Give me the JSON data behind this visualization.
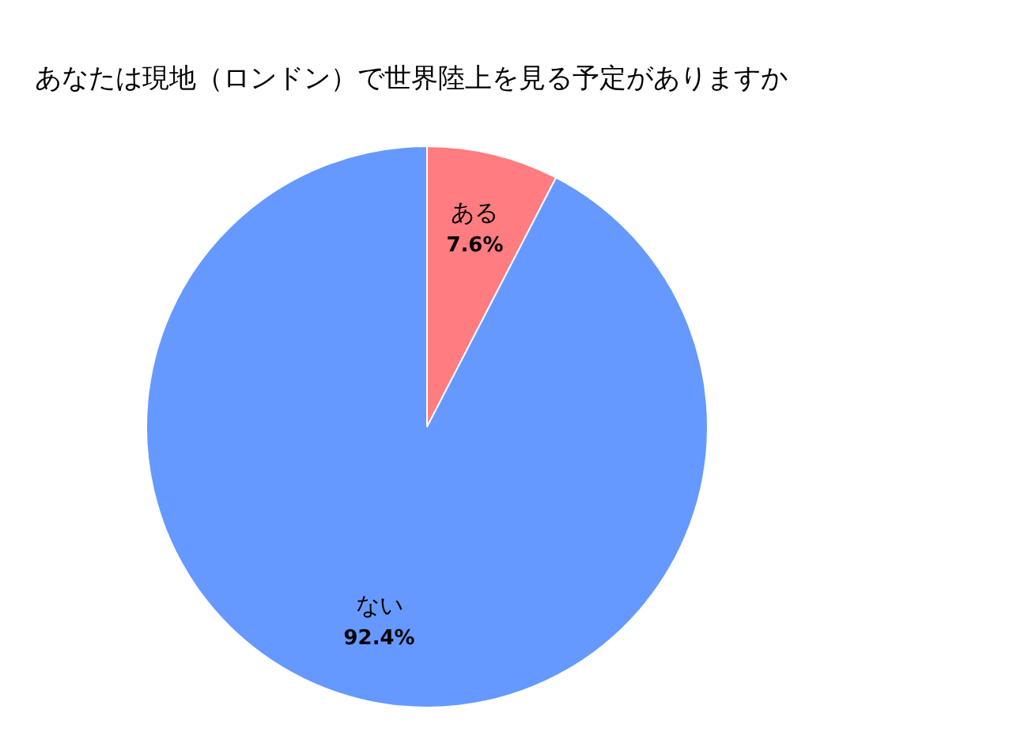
{
  "chart_data": {
    "type": "pie",
    "title": "あなたは現地（ロンドン）で世界陸上を見る予定がありますか",
    "categories": [
      "ある",
      "ない"
    ],
    "values": [
      7.6,
      92.4
    ],
    "colors": [
      "#ff7c80",
      "#6699ff"
    ],
    "value_labels": [
      "7.6%",
      "92.4%"
    ],
    "legend": false
  }
}
